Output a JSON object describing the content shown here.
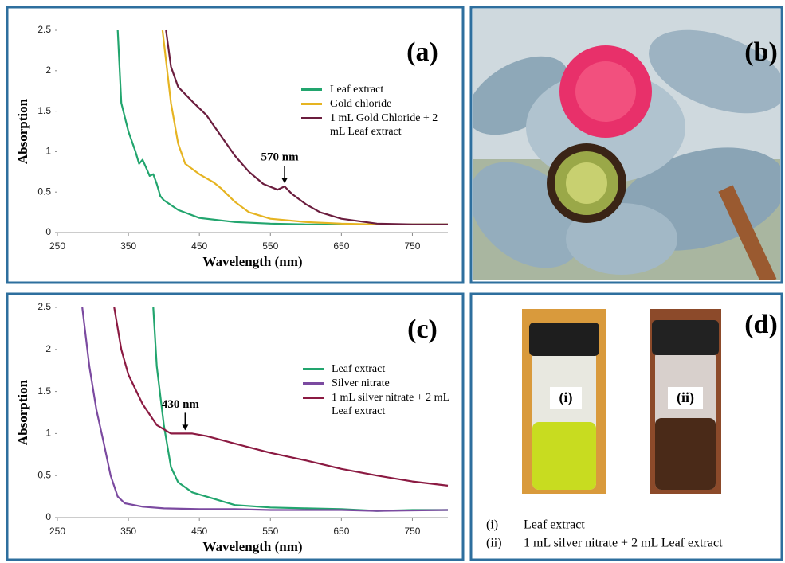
{
  "chart_data": [
    {
      "type": "line",
      "panel_label": "(a)",
      "x_label": "Wavelength (nm)",
      "y_label": "Absorption",
      "xlim": [
        250,
        800
      ],
      "xticks": [
        250,
        350,
        450,
        550,
        650,
        750
      ],
      "ylim": [
        0,
        2.5
      ],
      "yticks": [
        0,
        0.5,
        1,
        1.5,
        2,
        2.5
      ],
      "series": [
        {
          "name": "Leaf extract",
          "color": "#22a56e",
          "x": [
            335,
            340,
            350,
            360,
            365,
            370,
            375,
            380,
            385,
            390,
            395,
            400,
            420,
            450,
            500,
            550,
            600,
            700,
            800
          ],
          "values": [
            2.5,
            1.6,
            1.25,
            1.0,
            0.85,
            0.9,
            0.8,
            0.7,
            0.72,
            0.6,
            0.45,
            0.4,
            0.28,
            0.18,
            0.13,
            0.11,
            0.1,
            0.1,
            0.1
          ]
        },
        {
          "name": "Gold chloride",
          "color": "#e6b422",
          "x": [
            398,
            410,
            420,
            430,
            450,
            470,
            480,
            500,
            520,
            550,
            600,
            650,
            700,
            800
          ],
          "values": [
            2.5,
            1.6,
            1.1,
            0.85,
            0.72,
            0.62,
            0.55,
            0.38,
            0.25,
            0.17,
            0.13,
            0.11,
            0.1,
            0.1
          ]
        },
        {
          "name": "1 mL Gold Chloride + 2 mL Leaf extract",
          "color": "#6b1d3e",
          "x": [
            403,
            410,
            420,
            440,
            460,
            480,
            500,
            520,
            540,
            560,
            570,
            580,
            600,
            620,
            650,
            700,
            750,
            800
          ],
          "values": [
            2.5,
            2.05,
            1.8,
            1.62,
            1.45,
            1.2,
            0.95,
            0.75,
            0.6,
            0.53,
            0.57,
            0.48,
            0.35,
            0.25,
            0.17,
            0.11,
            0.1,
            0.1
          ]
        }
      ],
      "annotations": [
        {
          "text": "570 nm",
          "x": 570,
          "y": 0.57
        }
      ]
    },
    {
      "type": "line",
      "panel_label": "(c)",
      "x_label": "Wavelength (nm)",
      "y_label": "Absorption",
      "xlim": [
        250,
        800
      ],
      "xticks": [
        250,
        350,
        450,
        550,
        650,
        750
      ],
      "ylim": [
        0,
        2.5
      ],
      "yticks": [
        0,
        0.5,
        1,
        1.5,
        2,
        2.5
      ],
      "series": [
        {
          "name": "Leaf extract",
          "color": "#22a56e",
          "x": [
            385,
            390,
            400,
            410,
            420,
            440,
            460,
            480,
            500,
            550,
            600,
            650,
            700,
            750,
            800
          ],
          "values": [
            2.5,
            1.8,
            1.1,
            0.6,
            0.42,
            0.3,
            0.25,
            0.2,
            0.15,
            0.12,
            0.11,
            0.1,
            0.08,
            0.09,
            0.09
          ]
        },
        {
          "name": "Silver nitrate",
          "color": "#7b4aa0",
          "x": [
            285,
            295,
            305,
            315,
            325,
            335,
            345,
            370,
            400,
            450,
            500,
            550,
            600,
            650,
            700,
            800
          ],
          "values": [
            2.5,
            1.8,
            1.28,
            0.9,
            0.5,
            0.25,
            0.17,
            0.13,
            0.11,
            0.1,
            0.1,
            0.09,
            0.09,
            0.09,
            0.08,
            0.09
          ]
        },
        {
          "name": "1 mL silver nitrate + 2 mL Leaf extract",
          "color": "#8b1a42",
          "x": [
            330,
            340,
            350,
            370,
            390,
            410,
            440,
            460,
            500,
            550,
            600,
            650,
            700,
            750,
            800
          ],
          "values": [
            2.5,
            2.0,
            1.7,
            1.35,
            1.1,
            1.0,
            1.0,
            0.97,
            0.88,
            0.77,
            0.68,
            0.58,
            0.5,
            0.43,
            0.38
          ]
        }
      ],
      "annotations": [
        {
          "text": "430 nm",
          "x": 430,
          "y": 1.0
        }
      ]
    }
  ],
  "panel_b": {
    "label": "(b)"
  },
  "panel_d": {
    "label": "(d)",
    "vials": [
      "(i)",
      "(ii)"
    ],
    "legend": [
      {
        "marker": "(i)",
        "text": "Leaf extract"
      },
      {
        "marker": "(ii)",
        "text": "1 mL silver nitrate + 2 mL Leaf extract"
      }
    ]
  }
}
